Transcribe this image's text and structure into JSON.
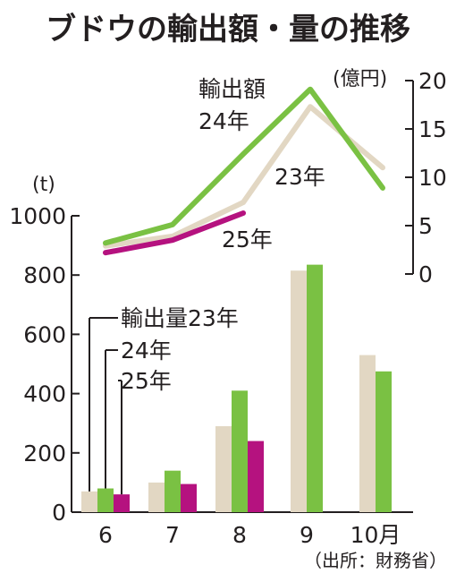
{
  "chart_data": {
    "title": "ブドウの輸出額・量の推移",
    "source": "（出所：財務省）",
    "categories": [
      "6",
      "7",
      "8",
      "9",
      "10月"
    ],
    "colors": {
      "y23": "#e2d7c3",
      "y24": "#7ac143",
      "y25": "#b5127f",
      "axis": "#231f20"
    },
    "bars": {
      "type": "bar",
      "unit": "(t)",
      "ylim": [
        0,
        1000
      ],
      "ticks": [
        0,
        200,
        400,
        600,
        800,
        1000
      ],
      "legend_labels": [
        "輸出量23年",
        "24年",
        "25年"
      ],
      "series": [
        {
          "name": "23年",
          "values": [
            70,
            100,
            290,
            815,
            530
          ]
        },
        {
          "name": "24年",
          "values": [
            80,
            140,
            410,
            835,
            475
          ]
        },
        {
          "name": "25年",
          "values": [
            60,
            95,
            240,
            null,
            null
          ]
        }
      ]
    },
    "lines": {
      "type": "line",
      "unit": "(億円)",
      "ylim": [
        0,
        20
      ],
      "ticks": [
        0,
        5,
        10,
        15,
        20
      ],
      "label": "輸出額\n24年",
      "series": [
        {
          "name": "23年",
          "values": [
            2.9,
            3.9,
            7.4,
            17.3,
            11.0
          ]
        },
        {
          "name": "24年",
          "values": [
            3.2,
            5.1,
            12.4,
            19.1,
            8.9
          ]
        },
        {
          "name": "25年",
          "values": [
            2.2,
            3.5,
            6.3,
            null,
            null
          ]
        }
      ],
      "series_labels": [
        "23年",
        "25年"
      ]
    }
  }
}
